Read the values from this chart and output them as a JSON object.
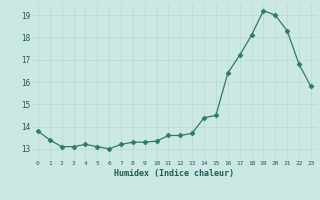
{
  "hours": [
    0,
    1,
    2,
    3,
    4,
    5,
    6,
    7,
    8,
    9,
    10,
    11,
    12,
    13,
    14,
    15,
    16,
    17,
    18,
    19,
    20,
    21,
    22,
    23
  ],
  "values": [
    13.8,
    13.4,
    13.1,
    13.1,
    13.2,
    13.1,
    13.0,
    13.2,
    13.3,
    13.3,
    13.35,
    13.6,
    13.6,
    13.7,
    14.4,
    14.5,
    16.4,
    17.2,
    18.1,
    19.2,
    19.0,
    18.3,
    16.8,
    15.8
  ],
  "xlabel": "Humidex (Indice chaleur)",
  "ylim": [
    12.5,
    19.5
  ],
  "xlim": [
    -0.5,
    23.5
  ],
  "line_color": "#2d7a6a",
  "marker": "D",
  "marker_size": 2.5,
  "bg_color": "#cce8e4",
  "grid_color": "#b8d8d4",
  "yticks": [
    13,
    14,
    15,
    16,
    17,
    18,
    19
  ],
  "xtick_labels": [
    "0",
    "1",
    "2",
    "3",
    "4",
    "5",
    "6",
    "7",
    "8",
    "9",
    "10",
    "11",
    "12",
    "13",
    "14",
    "15",
    "16",
    "17",
    "18",
    "19",
    "20",
    "21",
    "22",
    "23"
  ]
}
